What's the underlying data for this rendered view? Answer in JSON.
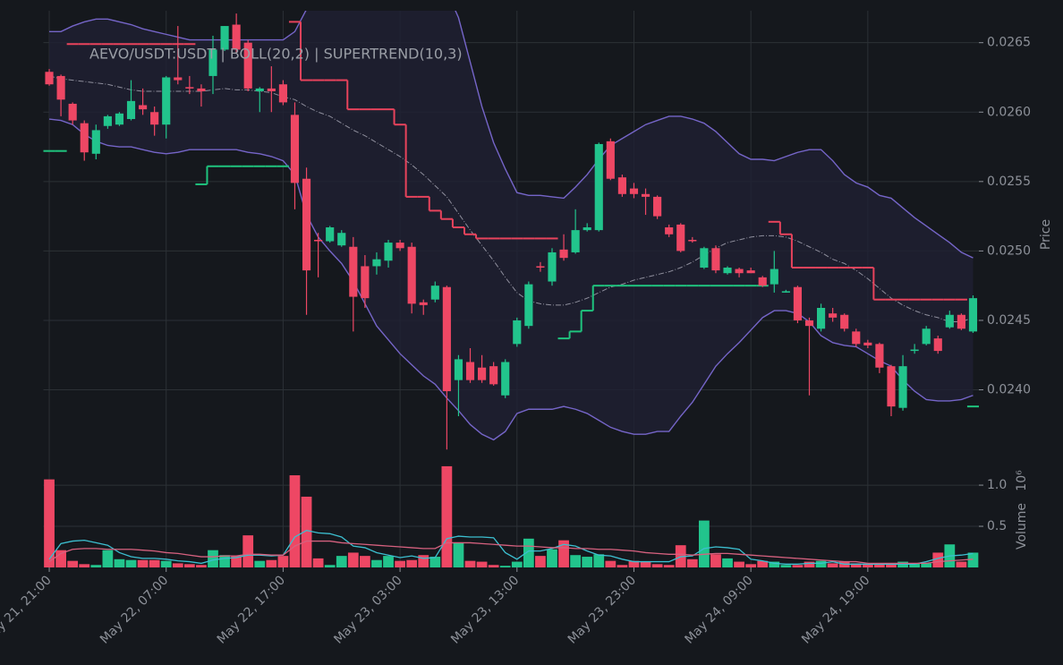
{
  "chart_data": [
    {
      "type": "candlestick",
      "title": "AEVO/USDT:USDT | BOLL(20,2) | SUPERTREND(10,3)",
      "ylabel": "Price",
      "categories": [
        "May 21, 21:00",
        null,
        null,
        null,
        null,
        null,
        null,
        null,
        null,
        null,
        "May 22, 07:00",
        null,
        null,
        null,
        null,
        null,
        null,
        null,
        null,
        null,
        "May 22, 17:00",
        null,
        null,
        null,
        null,
        null,
        null,
        null,
        null,
        null,
        "May 23, 03:00",
        null,
        null,
        null,
        null,
        null,
        null,
        null,
        null,
        null,
        "May 23, 13:00",
        null,
        null,
        null,
        null,
        null,
        null,
        null,
        null,
        null,
        "May 23, 23:00",
        null,
        null,
        null,
        null,
        null,
        null,
        null,
        null,
        null,
        "May 24, 09:00",
        null,
        null,
        null,
        null,
        null,
        null,
        null,
        null,
        null,
        "May 24, 19:00",
        null,
        null,
        null,
        null,
        null,
        null,
        null,
        null,
        null
      ],
      "open": [
        0.02629,
        0.02626,
        0.02606,
        0.02592,
        0.0257,
        0.0259,
        0.02591,
        0.02595,
        0.02605,
        0.026,
        0.02591,
        0.02625,
        0.02618,
        0.02617,
        0.02626,
        0.02645,
        0.02663,
        0.0265,
        0.02615,
        0.02617,
        0.0262,
        0.02598,
        0.02552,
        0.02508,
        0.02507,
        0.02504,
        0.02503,
        0.02489,
        0.02489,
        0.02493,
        0.02506,
        0.02503,
        0.02463,
        0.02465,
        0.02474,
        0.02407,
        0.0242,
        0.02416,
        0.02417,
        0.02396,
        0.02433,
        0.02446,
        0.02489,
        0.02478,
        0.02501,
        0.02499,
        0.02515,
        0.02515,
        0.02579,
        0.02553,
        0.02545,
        0.02541,
        0.02539,
        0.02517,
        0.02519,
        0.02508,
        0.02488,
        0.02502,
        0.02484,
        0.02487,
        0.02486,
        0.02481,
        0.02476,
        0.0247,
        0.02474,
        0.0245,
        0.02444,
        0.02455,
        0.02454,
        0.02442,
        0.02434,
        0.02433,
        0.02417,
        0.02387,
        0.02428,
        0.02433,
        0.02437,
        0.02445,
        0.02454,
        0.02442
      ],
      "high": [
        0.02631,
        0.02627,
        0.02607,
        0.02594,
        0.02591,
        0.02598,
        0.026,
        0.02623,
        0.02617,
        0.02604,
        0.02626,
        0.02662,
        0.02626,
        0.0262,
        0.02655,
        0.02662,
        0.02671,
        0.02652,
        0.02618,
        0.02633,
        0.02623,
        0.02607,
        0.0256,
        0.02513,
        0.02518,
        0.02515,
        0.0251,
        0.02497,
        0.02499,
        0.02508,
        0.02508,
        0.02506,
        0.02465,
        0.02478,
        0.02475,
        0.02425,
        0.0243,
        0.02425,
        0.0242,
        0.02422,
        0.02452,
        0.02478,
        0.02492,
        0.02502,
        0.02512,
        0.0253,
        0.0252,
        0.02578,
        0.02581,
        0.02555,
        0.02549,
        0.02545,
        0.0254,
        0.02519,
        0.0252,
        0.0251,
        0.02503,
        0.02504,
        0.02489,
        0.02488,
        0.02488,
        0.02482,
        0.025,
        0.02472,
        0.02475,
        0.02452,
        0.02462,
        0.02459,
        0.02455,
        0.02444,
        0.02436,
        0.02434,
        0.02418,
        0.02425,
        0.02433,
        0.02446,
        0.02439,
        0.02457,
        0.02455,
        0.02468
      ],
      "low": [
        0.02619,
        0.02597,
        0.02591,
        0.02565,
        0.02566,
        0.02588,
        0.0259,
        0.02594,
        0.02598,
        0.02583,
        0.02581,
        0.0262,
        0.02613,
        0.02604,
        0.02613,
        0.02644,
        0.02642,
        0.02615,
        0.026,
        0.026,
        0.02605,
        0.0253,
        0.02454,
        0.02481,
        0.02506,
        0.02503,
        0.02442,
        0.02459,
        0.02483,
        0.02488,
        0.025,
        0.02455,
        0.02454,
        0.02463,
        0.02357,
        0.02381,
        0.02405,
        0.02405,
        0.02403,
        0.02394,
        0.02431,
        0.02444,
        0.02485,
        0.02475,
        0.02493,
        0.02498,
        0.02514,
        0.02514,
        0.02551,
        0.02539,
        0.02538,
        0.02526,
        0.02523,
        0.0251,
        0.02499,
        0.02506,
        0.02487,
        0.02484,
        0.02483,
        0.02481,
        0.02484,
        0.02474,
        0.0247,
        0.0247,
        0.02448,
        0.02396,
        0.02442,
        0.02449,
        0.02442,
        0.02431,
        0.0243,
        0.02412,
        0.02381,
        0.02385,
        0.02426,
        0.02432,
        0.02426,
        0.02444,
        0.02443,
        0.02441
      ],
      "close": [
        0.0262,
        0.02609,
        0.02594,
        0.02571,
        0.02587,
        0.02597,
        0.02599,
        0.02608,
        0.02602,
        0.02591,
        0.02625,
        0.02623,
        0.02617,
        0.02615,
        0.02645,
        0.02662,
        0.02645,
        0.02617,
        0.02617,
        0.02615,
        0.02607,
        0.02549,
        0.02486,
        0.02507,
        0.02517,
        0.02513,
        0.02467,
        0.02466,
        0.02494,
        0.02506,
        0.02502,
        0.02462,
        0.02461,
        0.02475,
        0.02399,
        0.02422,
        0.02407,
        0.02407,
        0.02404,
        0.0242,
        0.0245,
        0.02476,
        0.02488,
        0.02499,
        0.02495,
        0.02515,
        0.02517,
        0.02577,
        0.02552,
        0.02541,
        0.02541,
        0.02539,
        0.02525,
        0.02512,
        0.025,
        0.02507,
        0.02502,
        0.02486,
        0.02488,
        0.02484,
        0.02484,
        0.02475,
        0.02487,
        0.02471,
        0.0245,
        0.02446,
        0.02459,
        0.02452,
        0.02444,
        0.02433,
        0.02432,
        0.02416,
        0.02388,
        0.02417,
        0.02429,
        0.02444,
        0.02428,
        0.02454,
        0.02444,
        0.02466
      ],
      "up_color": "#22c48c",
      "down_color": "#ee4764",
      "bollinger": {
        "color": "#7565c8",
        "mid_color": "#8e8e9c",
        "fill": "#1f2133",
        "upper": [
          0.02658,
          0.02658,
          0.02662,
          0.02665,
          0.02667,
          0.02667,
          0.02665,
          0.02663,
          0.0266,
          0.02658,
          0.02656,
          0.02654,
          0.02652,
          0.02652,
          0.02652,
          0.02652,
          0.02652,
          0.02652,
          0.02652,
          0.02652,
          0.02652,
          0.02658,
          0.02674,
          0.02687,
          0.027,
          0.0271,
          0.02716,
          0.0272,
          0.02721,
          0.02721,
          0.0272,
          0.02716,
          0.0271,
          0.027,
          0.02687,
          0.02668,
          0.02636,
          0.02604,
          0.02578,
          0.02559,
          0.02542,
          0.0254,
          0.0254,
          0.02539,
          0.02538,
          0.02546,
          0.02555,
          0.02566,
          0.02576,
          0.02581,
          0.02586,
          0.02591,
          0.02594,
          0.02597,
          0.02597,
          0.02595,
          0.02592,
          0.02586,
          0.02578,
          0.0257,
          0.02566,
          0.02566,
          0.02565,
          0.02568,
          0.02571,
          0.02573,
          0.02573,
          0.02565,
          0.02555,
          0.02549,
          0.02546,
          0.0254,
          0.02538,
          0.02531,
          0.02524,
          0.02518,
          0.02512,
          0.02506,
          0.02499,
          0.02495
        ],
        "mid": [
          0.02626,
          0.02624,
          0.02623,
          0.02622,
          0.02621,
          0.0262,
          0.02618,
          0.02616,
          0.02615,
          0.02615,
          0.02615,
          0.02615,
          0.02615,
          0.02615,
          0.02616,
          0.02617,
          0.02616,
          0.02616,
          0.02615,
          0.02614,
          0.02611,
          0.02609,
          0.02604,
          0.026,
          0.02597,
          0.02592,
          0.02587,
          0.02583,
          0.02578,
          0.02573,
          0.02568,
          0.02562,
          0.02555,
          0.02547,
          0.02539,
          0.02527,
          0.02515,
          0.02504,
          0.02493,
          0.02481,
          0.0247,
          0.02464,
          0.02462,
          0.02461,
          0.02461,
          0.02463,
          0.02466,
          0.0247,
          0.02474,
          0.02476,
          0.02479,
          0.02481,
          0.02483,
          0.02485,
          0.02488,
          0.02492,
          0.02497,
          0.02502,
          0.02506,
          0.02508,
          0.0251,
          0.02511,
          0.02511,
          0.0251,
          0.02507,
          0.02503,
          0.02499,
          0.02494,
          0.02491,
          0.02486,
          0.0248,
          0.02473,
          0.02466,
          0.02461,
          0.02457,
          0.02454,
          0.02452,
          0.02449,
          0.02449,
          0.02452
        ],
        "lower": [
          0.02595,
          0.02594,
          0.02591,
          0.02584,
          0.02579,
          0.02576,
          0.02575,
          0.02575,
          0.02573,
          0.02571,
          0.0257,
          0.02571,
          0.02573,
          0.02573,
          0.02573,
          0.02573,
          0.02573,
          0.02571,
          0.0257,
          0.02568,
          0.02565,
          0.02555,
          0.02526,
          0.0251,
          0.025,
          0.02491,
          0.02478,
          0.02462,
          0.02446,
          0.02436,
          0.02426,
          0.02418,
          0.0241,
          0.02404,
          0.02394,
          0.02385,
          0.02375,
          0.02368,
          0.02364,
          0.0237,
          0.02383,
          0.02386,
          0.02386,
          0.02386,
          0.02388,
          0.02386,
          0.02383,
          0.02378,
          0.02373,
          0.0237,
          0.02368,
          0.02368,
          0.0237,
          0.0237,
          0.02381,
          0.02391,
          0.02404,
          0.02417,
          0.02426,
          0.02434,
          0.02443,
          0.02452,
          0.02457,
          0.02457,
          0.02455,
          0.02449,
          0.02439,
          0.02434,
          0.02432,
          0.02431,
          0.02426,
          0.02421,
          0.02417,
          0.02407,
          0.02399,
          0.02393,
          0.02392,
          0.02392,
          0.02393,
          0.02396
        ]
      },
      "supertrend": {
        "up_color": "#1fc47e",
        "down_color": "#e8435c",
        "up": [
          0.02572,
          0.02572,
          null,
          null,
          null,
          null,
          null,
          null,
          null,
          null,
          null,
          null,
          null,
          0.02548,
          0.02561,
          0.02561,
          0.02561,
          0.02561,
          0.02561,
          0.02561,
          0.02561,
          null,
          null,
          null,
          null,
          null,
          null,
          null,
          null,
          null,
          null,
          null,
          null,
          null,
          null,
          null,
          null,
          null,
          null,
          null,
          null,
          null,
          null,
          null,
          0.02437,
          0.02442,
          0.02457,
          0.02475,
          0.02475,
          0.02475,
          0.02475,
          0.02475,
          0.02475,
          0.02475,
          0.02475,
          0.02475,
          0.02475,
          0.02475,
          0.02475,
          0.02475,
          0.02475,
          0.02475,
          null,
          null,
          null,
          null,
          null,
          null,
          null,
          null,
          null,
          null,
          null,
          null,
          null,
          null,
          null,
          null,
          null,
          0.02388
        ],
        "down": [
          null,
          null,
          0.02649,
          0.02649,
          0.02649,
          0.02649,
          0.02649,
          0.02649,
          0.02649,
          0.02649,
          0.02649,
          0.02649,
          0.02649,
          null,
          null,
          null,
          null,
          null,
          null,
          null,
          null,
          0.02665,
          0.02623,
          0.02623,
          0.02623,
          0.02623,
          0.02602,
          0.02602,
          0.02602,
          0.02602,
          0.02591,
          0.02539,
          0.02539,
          0.02529,
          0.02523,
          0.02517,
          0.02512,
          0.02509,
          0.02509,
          0.02509,
          0.02509,
          0.02509,
          0.02509,
          0.02509,
          null,
          null,
          null,
          null,
          null,
          null,
          null,
          null,
          null,
          null,
          null,
          null,
          null,
          null,
          null,
          null,
          null,
          null,
          0.02521,
          0.02512,
          0.02488,
          0.02488,
          0.02488,
          0.02488,
          0.02488,
          0.02488,
          0.02488,
          0.02465,
          0.02465,
          0.02465,
          0.02465,
          0.02465,
          0.02465,
          0.02465,
          0.02465,
          null
        ]
      },
      "ylim": [
        0.02352,
        0.02673
      ],
      "yticks": [
        {
          "value": 0.024,
          "label": "0.0240"
        },
        0.0245,
        {
          "value": 0.025,
          "label": "0.0250"
        },
        0.0255,
        {
          "value": 0.026,
          "label": "0.0260"
        },
        0.0265
      ],
      "grid": true
    },
    {
      "type": "bar",
      "ylabel": "Volume",
      "multiplier_label": "10⁶",
      "values": [
        1.07,
        0.21,
        0.08,
        0.04,
        0.03,
        0.21,
        0.1,
        0.09,
        0.09,
        0.09,
        0.08,
        0.05,
        0.04,
        0.03,
        0.21,
        0.15,
        0.14,
        0.39,
        0.08,
        0.09,
        0.14,
        1.12,
        0.86,
        0.11,
        0.03,
        0.14,
        0.18,
        0.14,
        0.09,
        0.14,
        0.08,
        0.09,
        0.15,
        0.13,
        1.23,
        0.3,
        0.08,
        0.07,
        0.03,
        0.02,
        0.07,
        0.35,
        0.14,
        0.22,
        0.33,
        0.15,
        0.13,
        0.16,
        0.08,
        0.03,
        0.08,
        0.07,
        0.04,
        0.03,
        0.27,
        0.1,
        0.57,
        0.16,
        0.11,
        0.07,
        0.04,
        0.08,
        0.07,
        0.03,
        0.03,
        0.07,
        0.08,
        0.05,
        0.07,
        0.05,
        0.04,
        0.05,
        0.04,
        0.07,
        0.05,
        0.05,
        0.18,
        0.28,
        0.07,
        0.18
      ],
      "moving_averages": [
        {
          "color": "#3cbfd0",
          "values": [
            0.1,
            0.29,
            0.32,
            0.33,
            0.3,
            0.27,
            0.18,
            0.13,
            0.11,
            0.11,
            0.1,
            0.08,
            0.07,
            0.05,
            0.09,
            0.11,
            0.12,
            0.15,
            0.15,
            0.14,
            0.15,
            0.37,
            0.45,
            0.42,
            0.41,
            0.37,
            0.26,
            0.24,
            0.18,
            0.15,
            0.12,
            0.14,
            0.11,
            0.12,
            0.35,
            0.38,
            0.37,
            0.37,
            0.36,
            0.18,
            0.1,
            0.2,
            0.2,
            0.23,
            0.28,
            0.26,
            0.2,
            0.15,
            0.14,
            0.1,
            0.07,
            0.07,
            0.07,
            0.07,
            0.13,
            0.14,
            0.23,
            0.25,
            0.24,
            0.22,
            0.1,
            0.08,
            0.05,
            0.04,
            0.04,
            0.05,
            0.05,
            0.07,
            0.04,
            0.04,
            0.04,
            0.04,
            0.04,
            0.04,
            0.04,
            0.07,
            0.11,
            0.14,
            0.15,
            0.17
          ]
        },
        {
          "color": "#d6617f",
          "values": [
            0.07,
            0.17,
            0.22,
            0.23,
            0.23,
            0.22,
            0.22,
            0.22,
            0.21,
            0.2,
            0.18,
            0.17,
            0.15,
            0.13,
            0.13,
            0.14,
            0.14,
            0.16,
            0.16,
            0.15,
            0.15,
            0.26,
            0.32,
            0.32,
            0.32,
            0.3,
            0.29,
            0.28,
            0.27,
            0.26,
            0.25,
            0.24,
            0.23,
            0.23,
            0.3,
            0.3,
            0.3,
            0.29,
            0.28,
            0.27,
            0.26,
            0.26,
            0.25,
            0.24,
            0.24,
            0.23,
            0.23,
            0.22,
            0.22,
            0.21,
            0.2,
            0.18,
            0.17,
            0.16,
            0.16,
            0.15,
            0.16,
            0.17,
            0.17,
            0.16,
            0.15,
            0.14,
            0.13,
            0.12,
            0.11,
            0.1,
            0.09,
            0.08,
            0.07,
            0.07,
            0.05,
            0.05,
            0.05,
            0.05,
            0.05,
            0.05,
            0.07,
            0.08,
            0.09,
            0.1
          ]
        }
      ],
      "ylim": [
        0,
        1.24
      ],
      "yticks": [
        0.5,
        {
          "value": 1,
          "label": "1.0"
        }
      ]
    }
  ]
}
